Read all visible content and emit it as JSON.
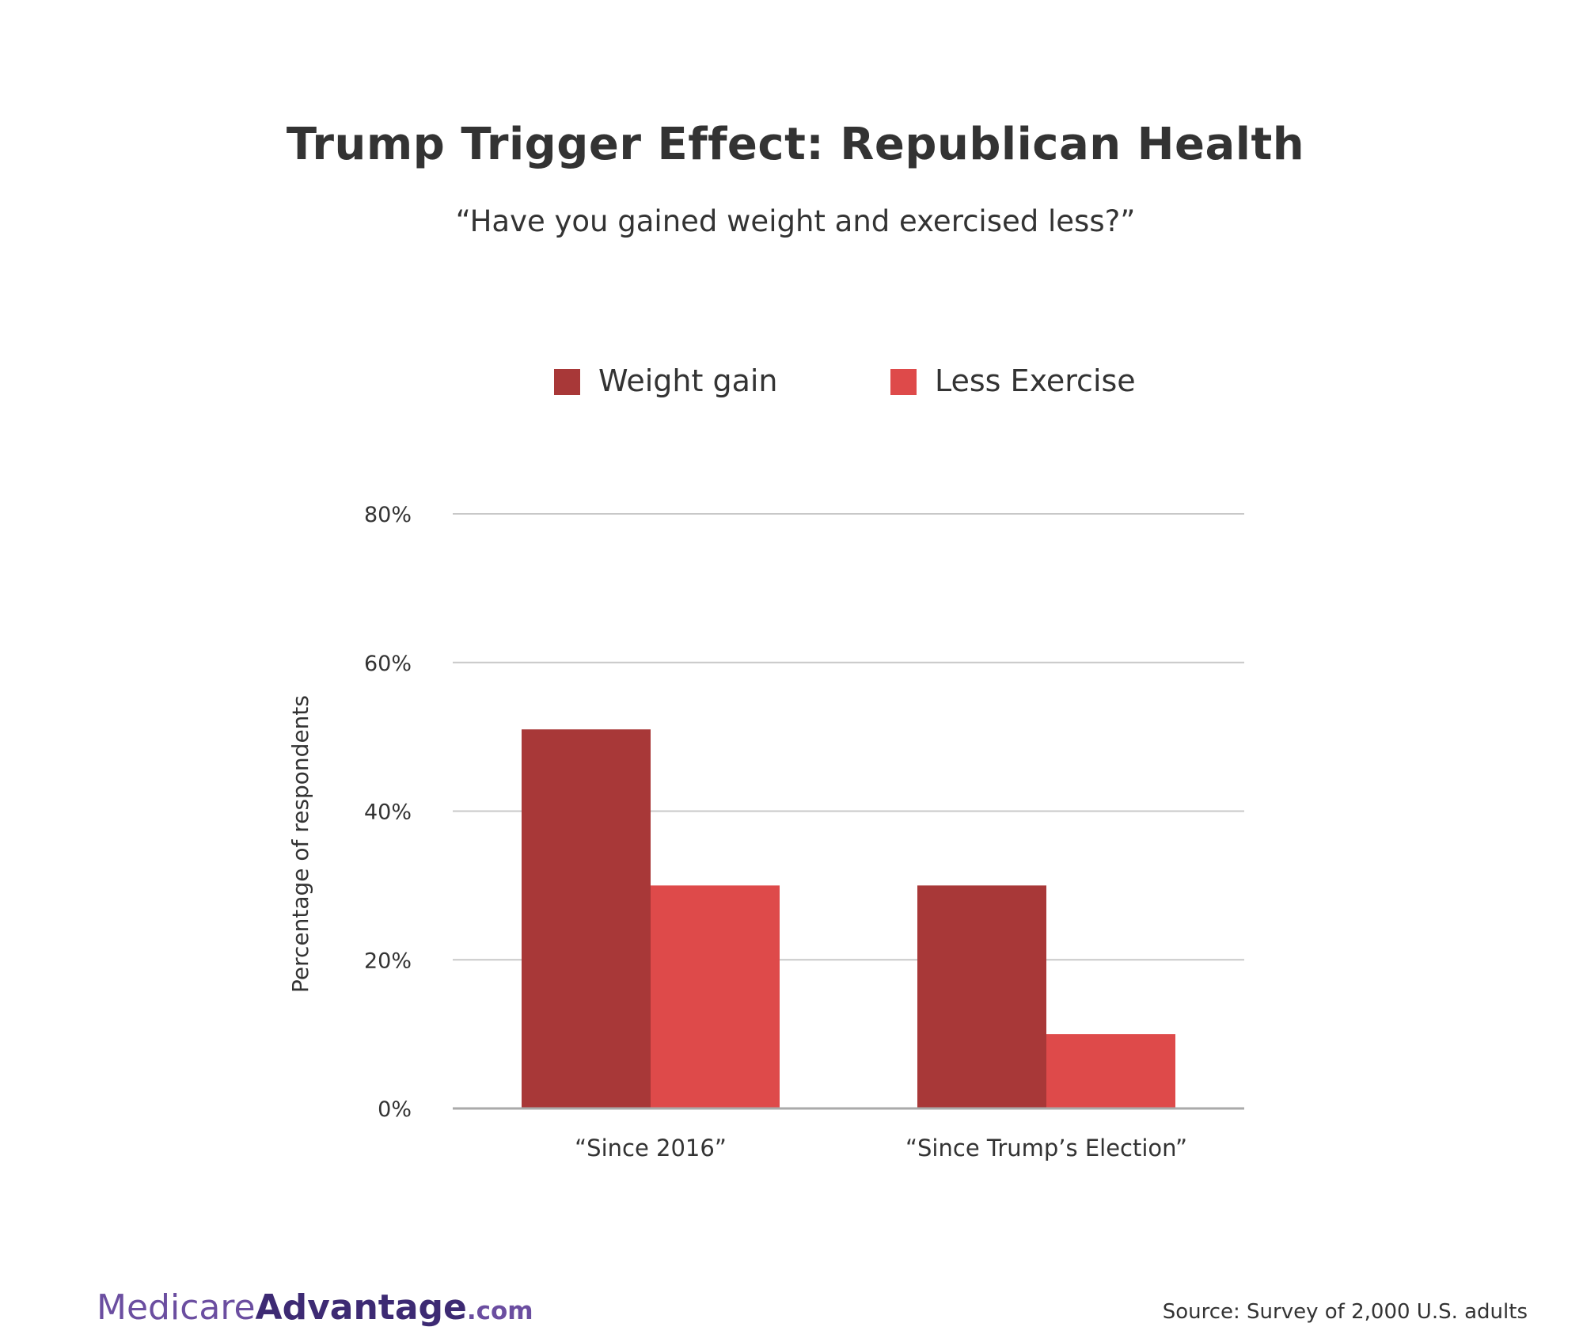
{
  "chart_data": {
    "type": "bar",
    "title": "Trump Trigger Effect: Republican Health",
    "subtitle": "“Have you gained weight and exercised less?”",
    "categories": [
      "“Since 2016”",
      "“Since Trump’s Election”"
    ],
    "series": [
      {
        "name": "Weight gain",
        "color": "#a83838",
        "values": [
          51,
          30
        ]
      },
      {
        "name": "Less Exercise",
        "color": "#de4a4a",
        "values": [
          30,
          10
        ]
      }
    ],
    "ylabel": "Percentage of respondents",
    "xlabel": "",
    "ylim": [
      0,
      80
    ],
    "yticks": [
      0,
      20,
      40,
      60,
      80
    ],
    "ytick_labels": [
      "0%",
      "20%",
      "40%",
      "60%",
      "80%"
    ],
    "grid": true,
    "legend_position": "top-center"
  },
  "brand": {
    "part1": "Medicare",
    "part2": "Advantage",
    "part3": ".com"
  },
  "source": "Source: Survey of 2,000 U.S. adults"
}
